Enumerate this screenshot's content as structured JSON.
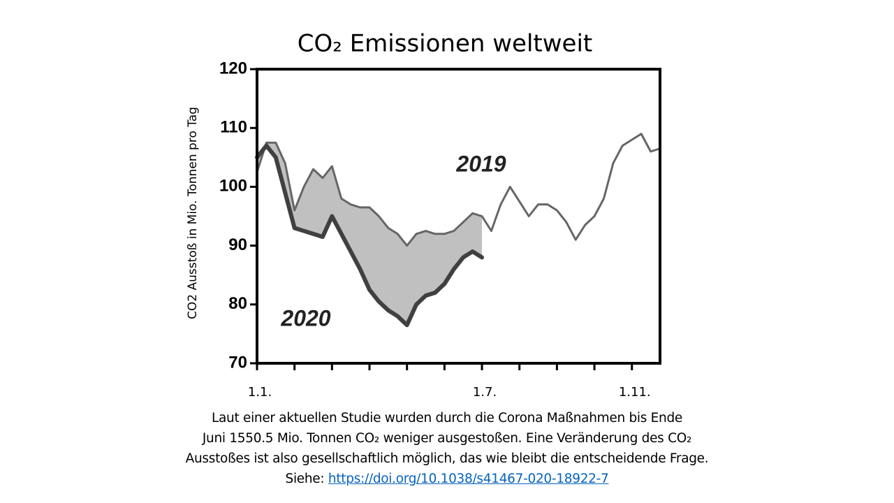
{
  "chart_data": {
    "type": "line",
    "title": "CO₂ Emissionen weltweit",
    "y_label": "CO2 Ausstoß in Mio. Tonnen pro Tag",
    "x": [
      0,
      0.25,
      0.5,
      0.75,
      1,
      1.25,
      1.5,
      1.75,
      2,
      2.25,
      2.5,
      2.75,
      3,
      3.25,
      3.5,
      3.75,
      4,
      4.25,
      4.5,
      4.75,
      5,
      5.25,
      5.5,
      5.75,
      6,
      6.25,
      6.5,
      6.75,
      7,
      7.25,
      7.5,
      7.75,
      8,
      8.25,
      8.5,
      8.75,
      9,
      9.25,
      9.5,
      9.75,
      10,
      10.25,
      10.5,
      10.75
    ],
    "series": [
      {
        "name": "2019",
        "color": "#666666",
        "values": [
          102.5,
          107.5,
          107.5,
          104,
          96,
          100,
          103,
          101.5,
          103.5,
          98,
          97,
          96.5,
          96.5,
          95,
          93,
          92,
          90,
          92,
          92.5,
          92,
          92,
          92.5,
          94,
          95.5,
          95,
          92.5,
          97,
          100,
          97.5,
          95,
          97,
          97,
          96,
          94,
          91,
          93.5,
          95,
          98,
          104,
          107,
          108,
          109,
          106,
          106.5
        ]
      },
      {
        "name": "2020",
        "color": "#404040",
        "values": [
          105,
          107,
          105,
          99,
          93,
          92.5,
          92,
          91.5,
          95,
          92,
          89,
          86,
          82.5,
          80.5,
          79,
          78,
          76.5,
          80,
          81.5,
          82,
          83.5,
          86,
          88,
          89,
          88,
          null,
          null,
          null,
          null,
          null,
          null,
          null,
          null,
          null,
          null,
          null,
          null,
          null,
          null,
          null,
          null,
          null,
          null,
          null
        ]
      }
    ],
    "fill_between_color": "#c0c0c0",
    "xlim": [
      0,
      10.75
    ],
    "xticks": [
      {
        "value": 0,
        "label": "1.1."
      },
      {
        "value": 6,
        "label": "1.7."
      },
      {
        "value": 10,
        "label": "1.11."
      }
    ],
    "xminorticks": [
      1,
      2,
      3,
      4,
      5,
      7,
      8,
      9
    ],
    "ylim": [
      70,
      120
    ],
    "yticks": [
      70,
      80,
      90,
      100,
      110,
      120
    ]
  },
  "caption": {
    "lines": [
      "Laut einer aktuellen Studie wurden durch die Corona Maßnahmen bis Ende",
      "Juni 1550.5 Mio. Tonnen CO₂ weniger ausgestoßen. Eine Veränderung des CO₂",
      "Ausstoßes ist also gesellschaftlich möglich, das wie bleibt die entscheidende Frage."
    ],
    "link_prefix": "Siehe:",
    "link": "https://doi.org/10.1038/s41467-020-18922-7"
  }
}
